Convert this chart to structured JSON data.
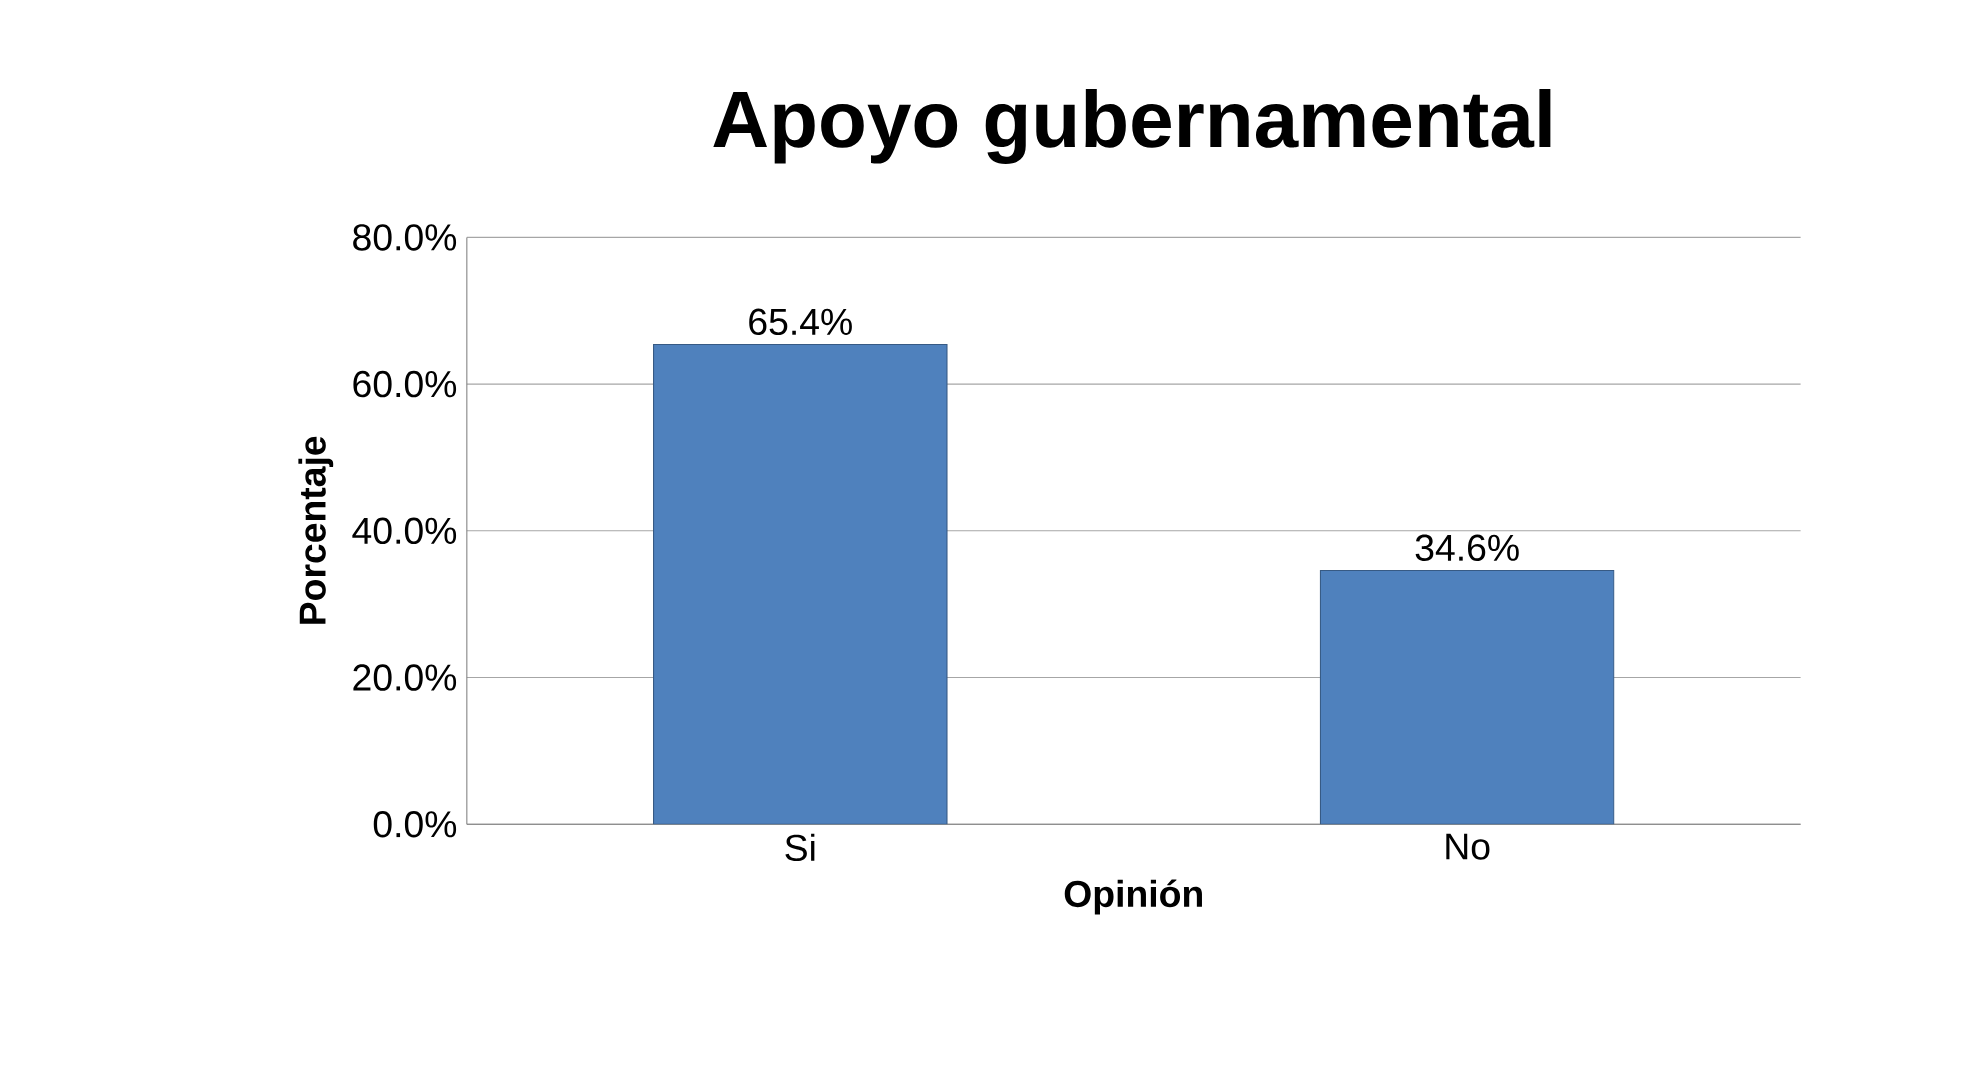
{
  "chart_data": {
    "type": "bar",
    "title": "Apoyo gubernamental",
    "xlabel": "Opinión",
    "ylabel": "Porcentaje",
    "categories": [
      "Si",
      "No"
    ],
    "values": [
      65.4,
      34.6
    ],
    "color": "#4f81bd",
    "value_labels": [
      "65.4%",
      "34.6%"
    ],
    "ylim": [
      0,
      80
    ],
    "yticks": [
      {
        "value": 0,
        "label": "0.0%"
      },
      {
        "value": 20,
        "label": "20.0%"
      },
      {
        "value": 40,
        "label": "40.0%"
      },
      {
        "value": 60,
        "label": "60.0%"
      },
      {
        "value": 80,
        "label": "80.0%"
      }
    ],
    "grid": true
  }
}
